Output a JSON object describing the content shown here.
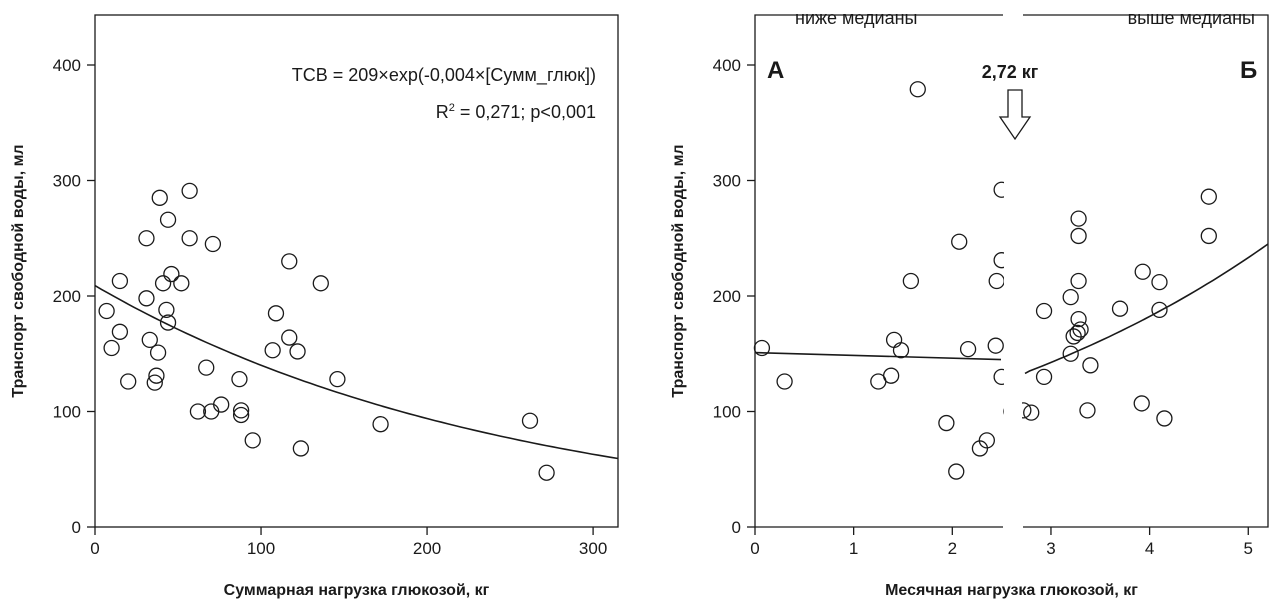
{
  "chart_data": [
    {
      "type": "scatter",
      "xlabel": "Суммарная нагрузка глюкозой, кг",
      "ylabel": "Транспорт свободной воды, мл",
      "xlim": [
        0,
        315
      ],
      "ylim": [
        0,
        400
      ],
      "xticks": [
        0,
        100,
        200,
        300
      ],
      "yticks": [
        0,
        100,
        200,
        300,
        400
      ],
      "annotations": {
        "equation": "ТСВ = 209×exp(-0,004×[Сумм_глюк])",
        "r2_prefix": "R",
        "r2_sup": "2",
        "r2_text": " = 0,271; р<0,001"
      },
      "fit": {
        "a": 209,
        "b": -0.004,
        "x_range": [
          0,
          315
        ]
      },
      "points": [
        {
          "x": 7,
          "y": 187
        },
        {
          "x": 10,
          "y": 155
        },
        {
          "x": 15,
          "y": 213
        },
        {
          "x": 15,
          "y": 169
        },
        {
          "x": 20,
          "y": 126
        },
        {
          "x": 31,
          "y": 198
        },
        {
          "x": 31,
          "y": 250
        },
        {
          "x": 33,
          "y": 162
        },
        {
          "x": 36,
          "y": 125
        },
        {
          "x": 37,
          "y": 131
        },
        {
          "x": 38,
          "y": 151
        },
        {
          "x": 39,
          "y": 285
        },
        {
          "x": 41,
          "y": 211
        },
        {
          "x": 43,
          "y": 188
        },
        {
          "x": 44,
          "y": 266
        },
        {
          "x": 44,
          "y": 177
        },
        {
          "x": 46,
          "y": 219
        },
        {
          "x": 52,
          "y": 211
        },
        {
          "x": 57,
          "y": 291
        },
        {
          "x": 57,
          "y": 250
        },
        {
          "x": 62,
          "y": 100
        },
        {
          "x": 67,
          "y": 138
        },
        {
          "x": 70,
          "y": 100
        },
        {
          "x": 71,
          "y": 245
        },
        {
          "x": 76,
          "y": 106
        },
        {
          "x": 87,
          "y": 128
        },
        {
          "x": 88,
          "y": 101
        },
        {
          "x": 88,
          "y": 97
        },
        {
          "x": 95,
          "y": 75
        },
        {
          "x": 107,
          "y": 153
        },
        {
          "x": 109,
          "y": 185
        },
        {
          "x": 117,
          "y": 230
        },
        {
          "x": 117,
          "y": 164
        },
        {
          "x": 122,
          "y": 152
        },
        {
          "x": 124,
          "y": 68
        },
        {
          "x": 136,
          "y": 211
        },
        {
          "x": 146,
          "y": 128
        },
        {
          "x": 172,
          "y": 89
        },
        {
          "x": 262,
          "y": 92
        },
        {
          "x": 272,
          "y": 47
        }
      ]
    },
    {
      "type": "scatter",
      "xlabel": "Месячная нагрузка глюкозой, кг",
      "ylabel": "Транспорт свободной воды, мл",
      "xlim": [
        0,
        5.2
      ],
      "ylim": [
        0,
        400
      ],
      "xticks": [
        "0",
        "1",
        "2",
        "3",
        "4",
        "5"
      ],
      "xtick_values": [
        0,
        1,
        2,
        3,
        4,
        5
      ],
      "yticks": [
        0,
        100,
        200,
        300,
        400
      ],
      "split": 2.72,
      "split_label": "2,72 кг",
      "region_labels": {
        "left": "ниже медианы",
        "right": "выше медианы"
      },
      "panel_labels": {
        "left": "А",
        "right": "Б"
      },
      "fit_left": {
        "x": [
          0.0,
          2.72
        ],
        "y": [
          151,
          145
        ]
      },
      "fit_right": {
        "x": [
          2.72,
          5.2
        ],
        "y": [
          133,
          245
        ]
      },
      "points": [
        {
          "x": 0.07,
          "y": 155
        },
        {
          "x": 0.3,
          "y": 126
        },
        {
          "x": 1.25,
          "y": 126
        },
        {
          "x": 1.38,
          "y": 131
        },
        {
          "x": 1.41,
          "y": 162
        },
        {
          "x": 1.48,
          "y": 153
        },
        {
          "x": 1.58,
          "y": 213
        },
        {
          "x": 1.65,
          "y": 379
        },
        {
          "x": 1.94,
          "y": 90
        },
        {
          "x": 2.04,
          "y": 48
        },
        {
          "x": 2.07,
          "y": 247
        },
        {
          "x": 2.16,
          "y": 154
        },
        {
          "x": 2.28,
          "y": 68
        },
        {
          "x": 2.35,
          "y": 75
        },
        {
          "x": 2.44,
          "y": 157
        },
        {
          "x": 2.45,
          "y": 213
        },
        {
          "x": 2.5,
          "y": 292
        },
        {
          "x": 2.5,
          "y": 231
        },
        {
          "x": 2.5,
          "y": 130
        },
        {
          "x": 2.6,
          "y": 100
        },
        {
          "x": 2.72,
          "y": 101
        },
        {
          "x": 2.8,
          "y": 99
        },
        {
          "x": 2.93,
          "y": 130
        },
        {
          "x": 2.93,
          "y": 187
        },
        {
          "x": 3.2,
          "y": 199
        },
        {
          "x": 3.2,
          "y": 150
        },
        {
          "x": 3.23,
          "y": 165
        },
        {
          "x": 3.27,
          "y": 168
        },
        {
          "x": 3.28,
          "y": 267
        },
        {
          "x": 3.28,
          "y": 252
        },
        {
          "x": 3.28,
          "y": 213
        },
        {
          "x": 3.28,
          "y": 180
        },
        {
          "x": 3.3,
          "y": 171
        },
        {
          "x": 3.37,
          "y": 101
        },
        {
          "x": 3.4,
          "y": 140
        },
        {
          "x": 3.7,
          "y": 189
        },
        {
          "x": 3.92,
          "y": 107
        },
        {
          "x": 3.93,
          "y": 221
        },
        {
          "x": 4.1,
          "y": 212
        },
        {
          "x": 4.1,
          "y": 188
        },
        {
          "x": 4.15,
          "y": 94
        },
        {
          "x": 4.6,
          "y": 286
        },
        {
          "x": 4.6,
          "y": 252
        }
      ]
    }
  ]
}
